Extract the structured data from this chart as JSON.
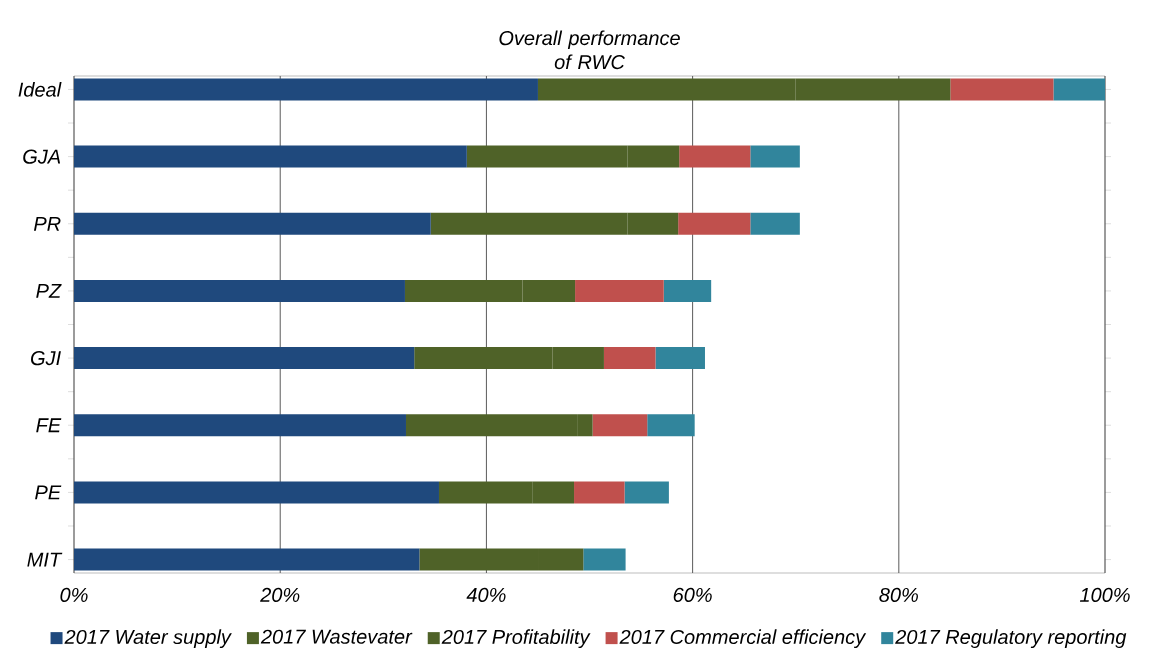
{
  "chart_data": {
    "type": "bar",
    "orientation": "horizontal",
    "stacked": true,
    "title": "Overall performance of RWC",
    "categories": [
      "Ideal",
      "GJA",
      "PR",
      "PZ",
      "GJI",
      "FE",
      "PE",
      "MIT"
    ],
    "series": [
      {
        "name": "2017  Water supply",
        "color": "#1f497d",
        "values": [
          45,
          38.1,
          34.6,
          32.1,
          33.0,
          32.2,
          35.4,
          33.5
        ]
      },
      {
        "name": "2017  Wastevater",
        "color": "#4f6228",
        "values": [
          25,
          15.6,
          19.1,
          11.4,
          13.4,
          16.6,
          9.1,
          11.6
        ]
      },
      {
        "name": "2017  Profitability",
        "color": "#4f6228",
        "values": [
          15,
          5.0,
          4.9,
          5.1,
          5.0,
          1.5,
          4.0,
          4.3
        ]
      },
      {
        "name": "2017  Commercial efficiency",
        "color": "#c0504d",
        "values": [
          10,
          6.9,
          7.0,
          8.6,
          5.0,
          5.3,
          4.9,
          null
        ]
      },
      {
        "name": "2017  Regulatory reporting",
        "color": "#31859c",
        "values": [
          5,
          4.8,
          4.8,
          4.6,
          4.8,
          4.6,
          4.3,
          4.1
        ]
      }
    ],
    "xlim": [
      0,
      100
    ],
    "xticks": [
      {
        "value": 0,
        "label": "0%"
      },
      {
        "value": 20,
        "label": "20%"
      },
      {
        "value": 40,
        "label": "40%"
      },
      {
        "value": 60,
        "label": "60%"
      },
      {
        "value": 80,
        "label": "80%"
      },
      {
        "value": 100,
        "label": "100%"
      }
    ],
    "grid": "x",
    "legend": "bottom"
  }
}
